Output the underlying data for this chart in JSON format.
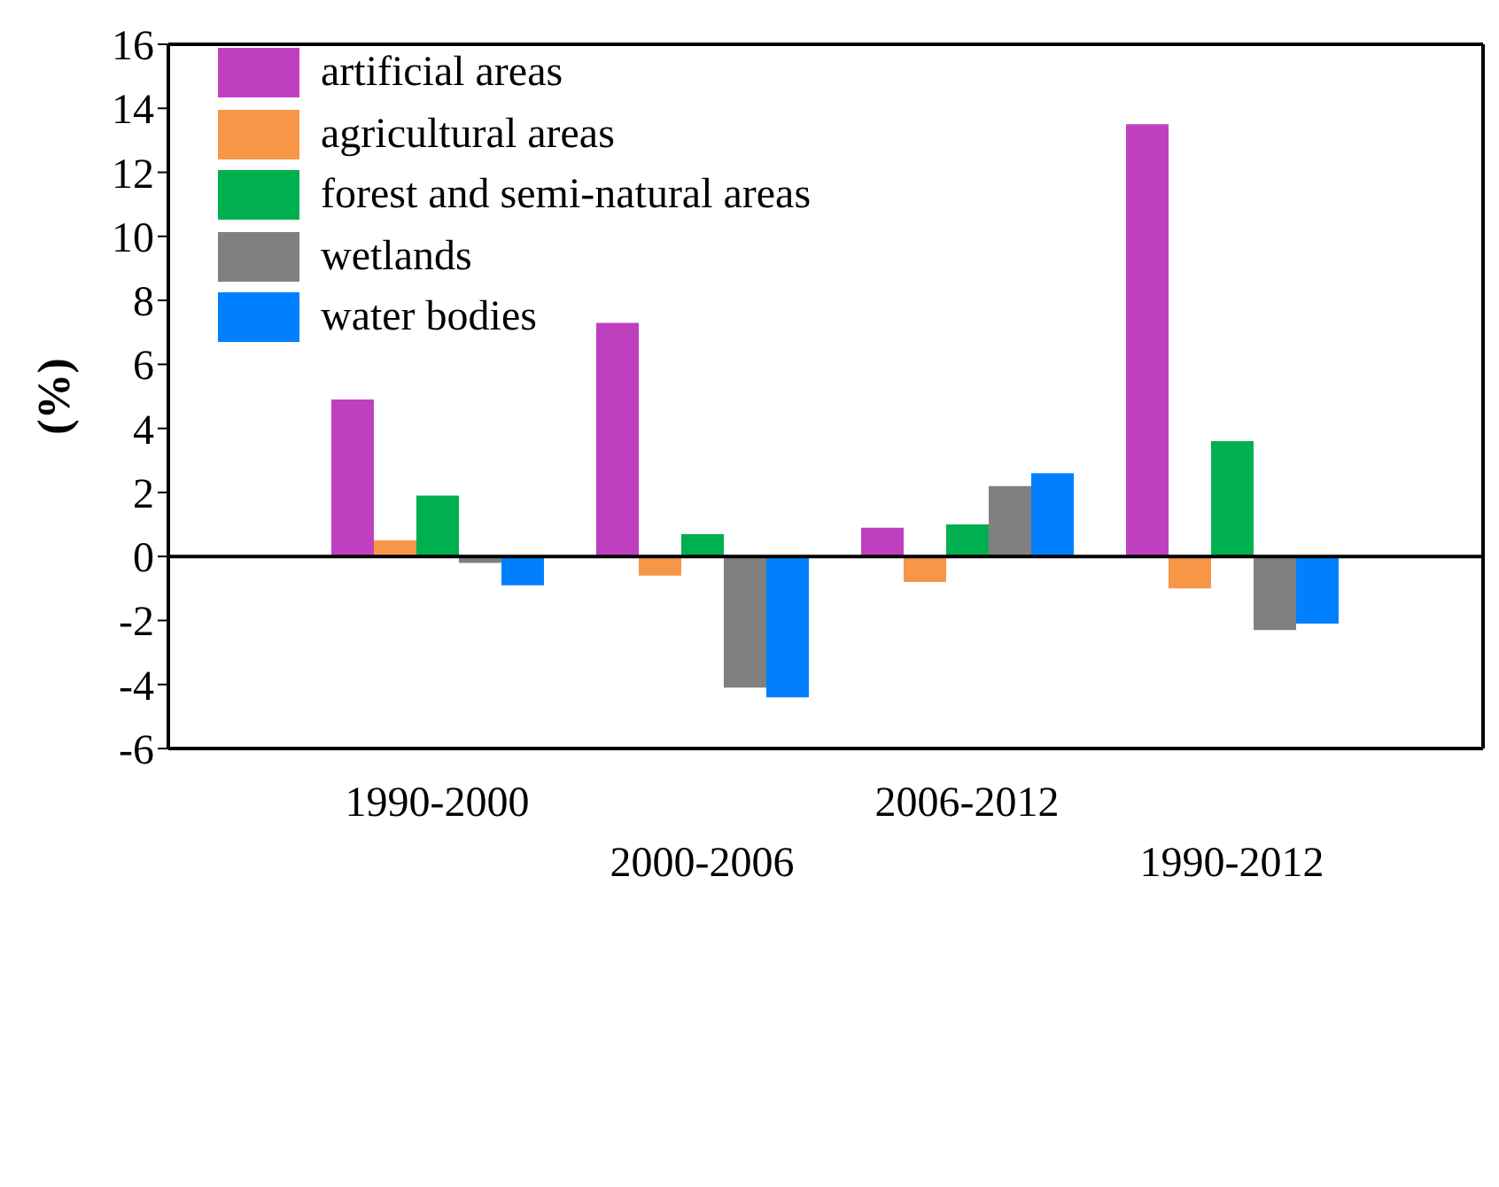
{
  "chart_data": {
    "type": "bar",
    "ylabel": "(%)",
    "categories": [
      "1990-2000",
      "2000-2006",
      "2006-2012",
      "1990-2012"
    ],
    "series": [
      {
        "name": "artificial areas",
        "color": "#bf40bf",
        "values": [
          4.9,
          7.3,
          0.9,
          13.5
        ]
      },
      {
        "name": "agricultural areas",
        "color": "#f79646",
        "values": [
          0.5,
          -0.6,
          -0.8,
          -1.0
        ]
      },
      {
        "name": "forest and semi-natural areas",
        "color": "#00b050",
        "values": [
          1.9,
          0.7,
          1.0,
          3.6
        ]
      },
      {
        "name": "wetlands",
        "color": "#808080",
        "values": [
          -0.2,
          -4.1,
          2.2,
          -2.3
        ]
      },
      {
        "name": "water bodies",
        "color": "#0080ff",
        "values": [
          -0.9,
          -4.4,
          2.6,
          -2.1
        ]
      }
    ],
    "ylim": [
      -6,
      16
    ],
    "yticks": [
      -6,
      -4,
      -2,
      0,
      2,
      4,
      6,
      8,
      10,
      12,
      14,
      16
    ],
    "ref_lines": [
      {
        "axis": "y",
        "value": 0,
        "color": "#000000"
      }
    ],
    "grid": false,
    "legend": "top left"
  }
}
